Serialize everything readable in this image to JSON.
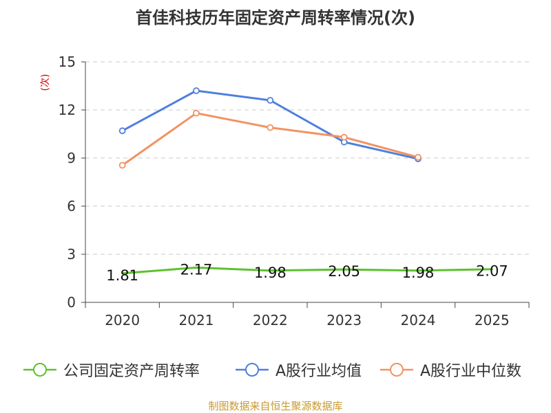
{
  "chart_data": {
    "type": "line",
    "title": "首佳科技历年固定资产周转率情况(次)",
    "ylabel": "(次)",
    "xlabel": "",
    "categories": [
      "2020",
      "2021",
      "2022",
      "2023",
      "2024",
      "2025"
    ],
    "ylim": [
      0,
      15
    ],
    "yticks": [
      0,
      3,
      6,
      9,
      12,
      15
    ],
    "grid": true,
    "legend_position": "bottom",
    "series": [
      {
        "name": "公司固定资产周转率",
        "color": "#5dc12f",
        "values": [
          1.81,
          2.17,
          1.98,
          2.05,
          1.98,
          2.07
        ],
        "labels": [
          "1.81",
          "2.17",
          "1.98",
          "2.05",
          "1.98",
          "2.07"
        ],
        "show_markers": false
      },
      {
        "name": "A股行业均值",
        "color": "#4f7fdc",
        "values": [
          10.7,
          13.2,
          12.6,
          10.0,
          8.95,
          null
        ],
        "show_markers": true
      },
      {
        "name": "A股行业中位数",
        "color": "#f39260",
        "values": [
          8.55,
          11.8,
          10.9,
          10.3,
          9.05,
          null
        ],
        "show_markers": true
      }
    ]
  },
  "footer": {
    "source": "制图数据来自恒生聚源数据库"
  }
}
